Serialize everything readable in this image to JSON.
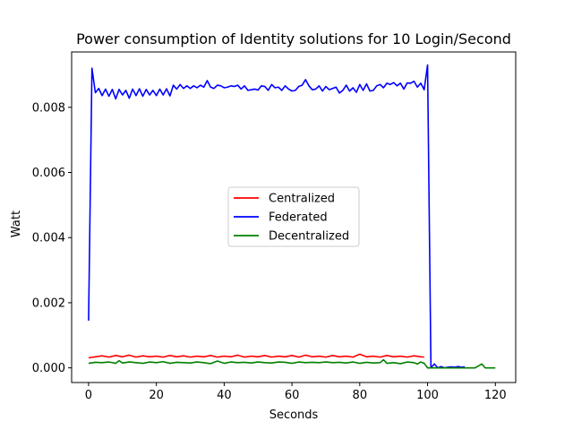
{
  "chart_data": {
    "type": "line",
    "title": "Power consumption of Identity solutions for 10 Login/Second",
    "xlabel": "Seconds",
    "ylabel": "Watt",
    "xlim": [
      -5,
      126
    ],
    "ylim": [
      -0.00045,
      0.0097
    ],
    "xticks": [
      0,
      20,
      40,
      60,
      80,
      100,
      120
    ],
    "yticks": [
      0.0,
      0.002,
      0.004,
      0.006,
      0.008
    ],
    "ytick_labels": [
      "0.000",
      "0.002",
      "0.004",
      "0.006",
      "0.008"
    ],
    "legend_position": "center",
    "series": [
      {
        "name": "Centralized",
        "color": "#ff0000",
        "x": [
          0,
          2,
          4,
          6,
          8,
          10,
          12,
          14,
          16,
          18,
          20,
          22,
          24,
          26,
          28,
          30,
          32,
          34,
          36,
          38,
          40,
          42,
          44,
          46,
          48,
          50,
          52,
          54,
          56,
          58,
          60,
          62,
          64,
          66,
          68,
          70,
          72,
          74,
          76,
          78,
          80,
          82,
          84,
          86,
          88,
          90,
          92,
          94,
          96,
          98,
          99
        ],
        "values": [
          0.00031,
          0.00034,
          0.00037,
          0.00033,
          0.00038,
          0.00034,
          0.00039,
          0.00033,
          0.00037,
          0.00034,
          0.00036,
          0.00033,
          0.00038,
          0.00034,
          0.00037,
          0.00033,
          0.00036,
          0.00034,
          0.00038,
          0.00033,
          0.00036,
          0.00034,
          0.00039,
          0.00033,
          0.00036,
          0.00034,
          0.00038,
          0.00033,
          0.00036,
          0.00034,
          0.00038,
          0.00033,
          0.00039,
          0.00034,
          0.00036,
          0.00033,
          0.00038,
          0.00034,
          0.00036,
          0.00033,
          0.00042,
          0.00034,
          0.00036,
          0.00033,
          0.00038,
          0.00034,
          0.00036,
          0.00033,
          0.00037,
          0.00034,
          0.00033
        ]
      },
      {
        "name": "Federated",
        "color": "#0000ff",
        "x": [
          0,
          1,
          2,
          3,
          4,
          5,
          6,
          7,
          8,
          9,
          10,
          11,
          12,
          13,
          14,
          15,
          16,
          17,
          18,
          19,
          20,
          21,
          22,
          23,
          24,
          25,
          26,
          27,
          28,
          29,
          30,
          31,
          32,
          33,
          34,
          35,
          36,
          37,
          38,
          39,
          40,
          41,
          42,
          43,
          44,
          45,
          46,
          47,
          48,
          49,
          50,
          51,
          52,
          53,
          54,
          55,
          56,
          57,
          58,
          59,
          60,
          61,
          62,
          63,
          64,
          65,
          66,
          67,
          68,
          69,
          70,
          71,
          72,
          73,
          74,
          75,
          76,
          77,
          78,
          79,
          80,
          81,
          82,
          83,
          84,
          85,
          86,
          87,
          88,
          89,
          90,
          91,
          92,
          93,
          94,
          95,
          96,
          97,
          98,
          99,
          100,
          101,
          102,
          103,
          104,
          105,
          106,
          107,
          108,
          109,
          110,
          111
        ],
        "values": [
          0.00145,
          0.0092,
          0.00845,
          0.00858,
          0.00836,
          0.00856,
          0.00834,
          0.00855,
          0.00826,
          0.00855,
          0.00838,
          0.00852,
          0.00828,
          0.00856,
          0.00836,
          0.00857,
          0.00834,
          0.00855,
          0.00838,
          0.00852,
          0.00836,
          0.00856,
          0.00838,
          0.00857,
          0.00835,
          0.00868,
          0.00856,
          0.0087,
          0.00858,
          0.00866,
          0.00858,
          0.00866,
          0.0086,
          0.00868,
          0.00862,
          0.00882,
          0.00862,
          0.00858,
          0.00868,
          0.00866,
          0.0086,
          0.00862,
          0.00866,
          0.00864,
          0.00868,
          0.00856,
          0.00866,
          0.00852,
          0.00854,
          0.00856,
          0.00853,
          0.00866,
          0.00864,
          0.00852,
          0.0087,
          0.0086,
          0.00862,
          0.00852,
          0.00866,
          0.00856,
          0.0085,
          0.00852,
          0.00864,
          0.00868,
          0.00885,
          0.00866,
          0.00854,
          0.00856,
          0.00866,
          0.0085,
          0.00864,
          0.00854,
          0.00858,
          0.00862,
          0.00844,
          0.00852,
          0.00868,
          0.0085,
          0.0086,
          0.00846,
          0.0087,
          0.00852,
          0.00872,
          0.0085,
          0.00852,
          0.00866,
          0.0087,
          0.0086,
          0.00874,
          0.0087,
          0.00876,
          0.00866,
          0.00874,
          0.00856,
          0.00875,
          0.00874,
          0.0088,
          0.00862,
          0.00874,
          0.00854,
          0.0093,
          0.0,
          0.00012,
          0.0,
          4e-05,
          0.0,
          2e-05,
          3e-05,
          2e-05,
          4e-05,
          2e-05,
          3e-05
        ]
      },
      {
        "name": "Decentralized",
        "color": "#008000",
        "x": [
          0,
          2,
          4,
          6,
          8,
          9,
          10,
          12,
          14,
          16,
          18,
          20,
          22,
          24,
          26,
          28,
          30,
          32,
          34,
          36,
          38,
          40,
          42,
          44,
          46,
          48,
          50,
          52,
          54,
          56,
          58,
          60,
          62,
          64,
          66,
          68,
          70,
          72,
          74,
          76,
          78,
          80,
          82,
          84,
          86,
          87,
          88,
          90,
          92,
          94,
          96,
          97,
          98,
          99,
          100,
          102,
          104,
          106,
          108,
          110,
          112,
          114,
          116,
          117,
          118,
          120
        ],
        "values": [
          0.00014,
          0.00017,
          0.00016,
          0.00018,
          0.00014,
          0.00022,
          0.00015,
          0.00018,
          0.00016,
          0.00014,
          0.00018,
          0.00016,
          0.00019,
          0.00014,
          0.00017,
          0.00016,
          0.00015,
          0.00018,
          0.00016,
          0.00013,
          0.00021,
          0.00014,
          0.00018,
          0.00016,
          0.00017,
          0.00015,
          0.00018,
          0.00016,
          0.00015,
          0.00018,
          0.00017,
          0.00014,
          0.00018,
          0.00016,
          0.00017,
          0.00016,
          0.00018,
          0.00016,
          0.00017,
          0.00015,
          0.00018,
          0.00014,
          0.00017,
          0.00015,
          0.00016,
          0.00025,
          0.00014,
          0.00016,
          0.00013,
          0.00018,
          0.00016,
          0.00012,
          0.00018,
          0.00014,
          0.0,
          0.0,
          0.0,
          0.0,
          0.0,
          0.0,
          0.0,
          0.0,
          0.00012,
          0.0,
          0.0,
          0.0
        ]
      }
    ]
  }
}
